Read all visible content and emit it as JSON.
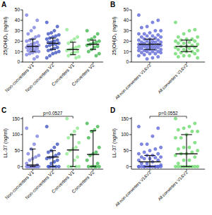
{
  "chart_data": [
    {
      "type": "strip",
      "title": "A",
      "y_label": "25(OH)D₃ (ng/ml)",
      "categories": [
        "Non-converters V1",
        "Non-converters V2",
        "Converters V1",
        "Converters V2"
      ],
      "colors": [
        "#7b7fe0",
        "#3a4fc0",
        "#8ee88e",
        "#3cb64a"
      ],
      "values": [
        [
          45,
          40,
          33,
          30,
          27,
          25,
          24,
          22,
          21,
          20,
          19,
          18,
          17,
          16,
          16,
          15,
          15,
          14,
          14,
          13,
          12,
          12,
          11,
          10,
          10,
          9,
          8,
          7,
          5,
          3
        ],
        [
          38,
          34,
          30,
          28,
          27,
          26,
          25,
          24,
          23,
          22,
          21,
          20,
          19,
          19,
          18,
          17,
          17,
          16,
          15,
          14,
          13,
          12,
          11,
          10,
          9,
          8,
          6,
          4
        ],
        [
          31,
          24,
          22,
          20,
          18,
          15,
          14,
          13,
          12,
          11,
          10,
          9,
          8,
          6,
          5,
          4
        ],
        [
          30,
          27,
          24,
          22,
          21,
          20,
          19,
          18,
          17,
          16,
          15,
          14,
          12,
          10,
          8,
          6
        ]
      ],
      "medians": [
        15,
        18,
        12,
        17
      ],
      "q1": [
        10,
        12,
        7,
        12
      ],
      "q3": [
        22,
        23,
        19,
        21
      ],
      "ylim": [
        0,
        50
      ],
      "yticks": [
        0,
        10,
        20,
        30,
        40,
        50
      ]
    },
    {
      "type": "strip",
      "title": "B",
      "y_label": "25(OH)D₃ (ng/ml)",
      "categories": [
        "All non-converters V1&V2",
        "All converters V1&V2"
      ],
      "colors": [
        "#5a63d6",
        "#6ad86a"
      ],
      "values": [
        [
          45,
          40,
          38,
          34,
          33,
          30,
          30,
          28,
          27,
          27,
          26,
          25,
          25,
          24,
          24,
          23,
          22,
          22,
          21,
          21,
          20,
          20,
          19,
          19,
          19,
          18,
          18,
          17,
          17,
          17,
          16,
          16,
          16,
          15,
          15,
          15,
          14,
          14,
          14,
          13,
          13,
          12,
          12,
          12,
          11,
          11,
          10,
          10,
          10,
          9,
          9,
          8,
          8,
          7,
          6,
          5,
          4,
          3
        ],
        [
          38,
          31,
          30,
          27,
          24,
          24,
          22,
          22,
          21,
          20,
          20,
          19,
          18,
          18,
          17,
          16,
          15,
          15,
          14,
          14,
          13,
          12,
          12,
          11,
          10,
          10,
          9,
          8,
          8,
          6,
          6,
          5,
          4
        ]
      ],
      "medians": [
        17,
        15
      ],
      "q1": [
        12,
        10
      ],
      "q3": [
        22,
        21
      ],
      "ylim": [
        0,
        50
      ],
      "yticks": [
        0,
        10,
        20,
        30,
        40,
        50
      ]
    },
    {
      "type": "strip",
      "title": "C",
      "y_label": "LL-37 (ng/ml)",
      "categories": [
        "Non-converters V1",
        "Non-converters V2",
        "Converters V1",
        "Converters V2"
      ],
      "colors": [
        "#7b7fe0",
        "#3a4fc0",
        "#8ee88e",
        "#3cb64a"
      ],
      "values": [
        [
          120,
          95,
          70,
          55,
          40,
          35,
          30,
          25,
          20,
          10,
          5,
          0,
          0,
          0,
          0,
          0,
          0,
          0,
          0,
          0
        ],
        [
          125,
          70,
          60,
          50,
          45,
          40,
          35,
          30,
          28,
          25,
          20,
          15,
          10,
          0,
          0,
          0,
          0,
          0
        ],
        [
          150,
          120,
          110,
          100,
          90,
          75,
          60,
          55,
          50,
          40,
          30,
          20,
          0,
          0,
          0,
          0
        ],
        [
          135,
          125,
          115,
          110,
          90,
          60,
          45,
          40,
          35,
          20,
          10,
          0,
          0,
          0,
          0,
          0
        ]
      ],
      "medians": [
        5,
        30,
        52,
        38
      ],
      "q1": [
        0,
        0,
        0,
        0
      ],
      "q3": [
        55,
        50,
        100,
        112
      ],
      "ylim": [
        -8,
        155
      ],
      "yticks": [
        0,
        50,
        100,
        150
      ],
      "annotations": [
        {
          "text": "p=0.0527",
          "between": [
            "Non-converters V1",
            "Converters V1"
          ]
        }
      ]
    },
    {
      "type": "strip",
      "title": "D",
      "y_label": "LL-37 (ng/ml)",
      "categories": [
        "All non-converters V1&V2",
        "All converters V1&V2"
      ],
      "colors": [
        "#5a63d6",
        "#6ad86a"
      ],
      "values": [
        [
          125,
          120,
          95,
          70,
          70,
          60,
          55,
          50,
          45,
          40,
          40,
          35,
          35,
          30,
          30,
          28,
          25,
          25,
          20,
          20,
          15,
          10,
          10,
          5,
          0,
          0,
          0,
          0,
          0,
          0,
          0,
          0,
          0,
          0,
          0,
          0,
          0,
          0
        ],
        [
          150,
          135,
          125,
          120,
          115,
          110,
          110,
          100,
          90,
          90,
          75,
          60,
          60,
          55,
          50,
          45,
          40,
          40,
          35,
          30,
          20,
          20,
          10,
          0,
          0,
          0,
          0,
          0,
          0,
          0,
          0,
          0
        ]
      ],
      "medians": [
        15,
        40
      ],
      "q1": [
        0,
        0
      ],
      "q3": [
        35,
        100
      ],
      "ylim": [
        -8,
        155
      ],
      "yticks": [
        0,
        50,
        100,
        150
      ],
      "annotations": [
        {
          "text": "p=0.0552",
          "between": [
            "All non-converters V1&V2",
            "All converters V1&V2"
          ]
        }
      ]
    }
  ]
}
